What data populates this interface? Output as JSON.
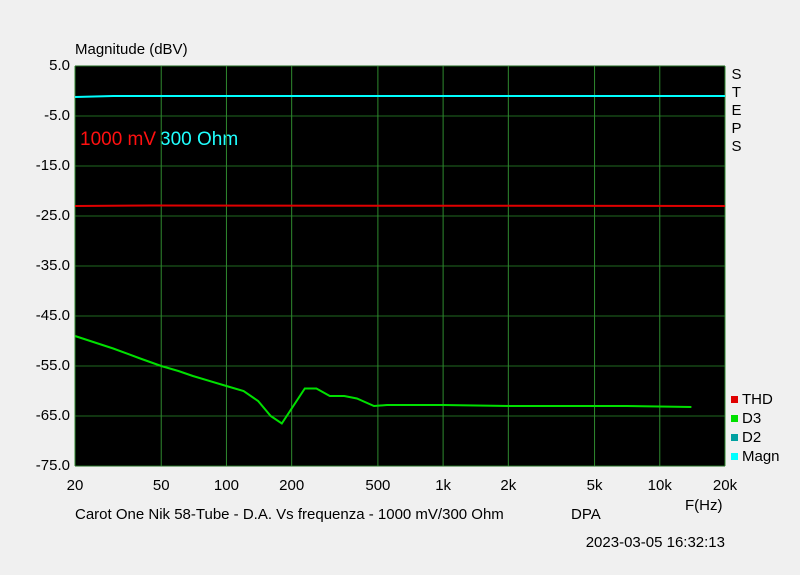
{
  "chart_data": {
    "type": "line",
    "y_label": "Magnitude (dBV)",
    "x_label": "F(Hz)",
    "side_label": "STEPS",
    "annotations": [
      {
        "text": "1000 mV",
        "color": "#ff1010"
      },
      {
        "text": "300 Ohm",
        "color": "#20ffff"
      }
    ],
    "footer": "Carot One Nik 58-Tube - D.A. Vs frequenza - 1000 mV/300 Ohm",
    "footer_tag": "DPA",
    "timestamp": "2023-03-05 16:32:13",
    "xscale": "log",
    "xlim": [
      20,
      20000
    ],
    "ylim": [
      -75,
      5
    ],
    "xticks": [
      20,
      50,
      100,
      200,
      500,
      {
        "value": 1000,
        "label": "1k"
      },
      {
        "value": 2000,
        "label": "2k"
      },
      {
        "value": 5000,
        "label": "5k"
      },
      {
        "value": 10000,
        "label": "10k"
      },
      {
        "value": 20000,
        "label": "20k"
      }
    ],
    "yticks": [
      {
        "value": 5,
        "label": "5.0"
      },
      {
        "value": -5,
        "label": "-5.0"
      },
      {
        "value": -15,
        "label": "-15.0"
      },
      {
        "value": -25,
        "label": "-25.0"
      },
      {
        "value": -35,
        "label": "-35.0"
      },
      {
        "value": -45,
        "label": "-45.0"
      },
      {
        "value": -55,
        "label": "-55.0"
      },
      {
        "value": -65,
        "label": "-65.0"
      },
      {
        "value": -75,
        "label": "-75.0"
      }
    ],
    "grid": true,
    "series": [
      {
        "name": "THD",
        "color": "#e00000",
        "x": [
          20,
          45,
          20000
        ],
        "values": [
          -23,
          -22.9,
          -23
        ]
      },
      {
        "name": "D3",
        "color": "#00e000",
        "x": [
          20,
          30,
          40,
          50,
          60,
          70,
          100,
          120,
          140,
          160,
          180,
          230,
          260,
          300,
          350,
          400,
          480,
          550,
          700,
          1000,
          2000,
          5000,
          7000,
          14000
        ],
        "values": [
          -49,
          -51.5,
          -53.5,
          -55,
          -56,
          -57,
          -59,
          -60,
          -62,
          -65,
          -66.5,
          -59.5,
          -59.5,
          -61,
          -61,
          -61.5,
          -63,
          -62.8,
          -62.8,
          -62.8,
          -63,
          -63,
          -63,
          -63.2
        ]
      },
      {
        "name": "D2",
        "color": "#00a0a0",
        "x": [],
        "values": []
      },
      {
        "name": "Magn",
        "color": "#00ffff",
        "x": [
          20,
          30,
          20000
        ],
        "values": [
          -1.2,
          -1.0,
          -1.0
        ]
      }
    ]
  }
}
